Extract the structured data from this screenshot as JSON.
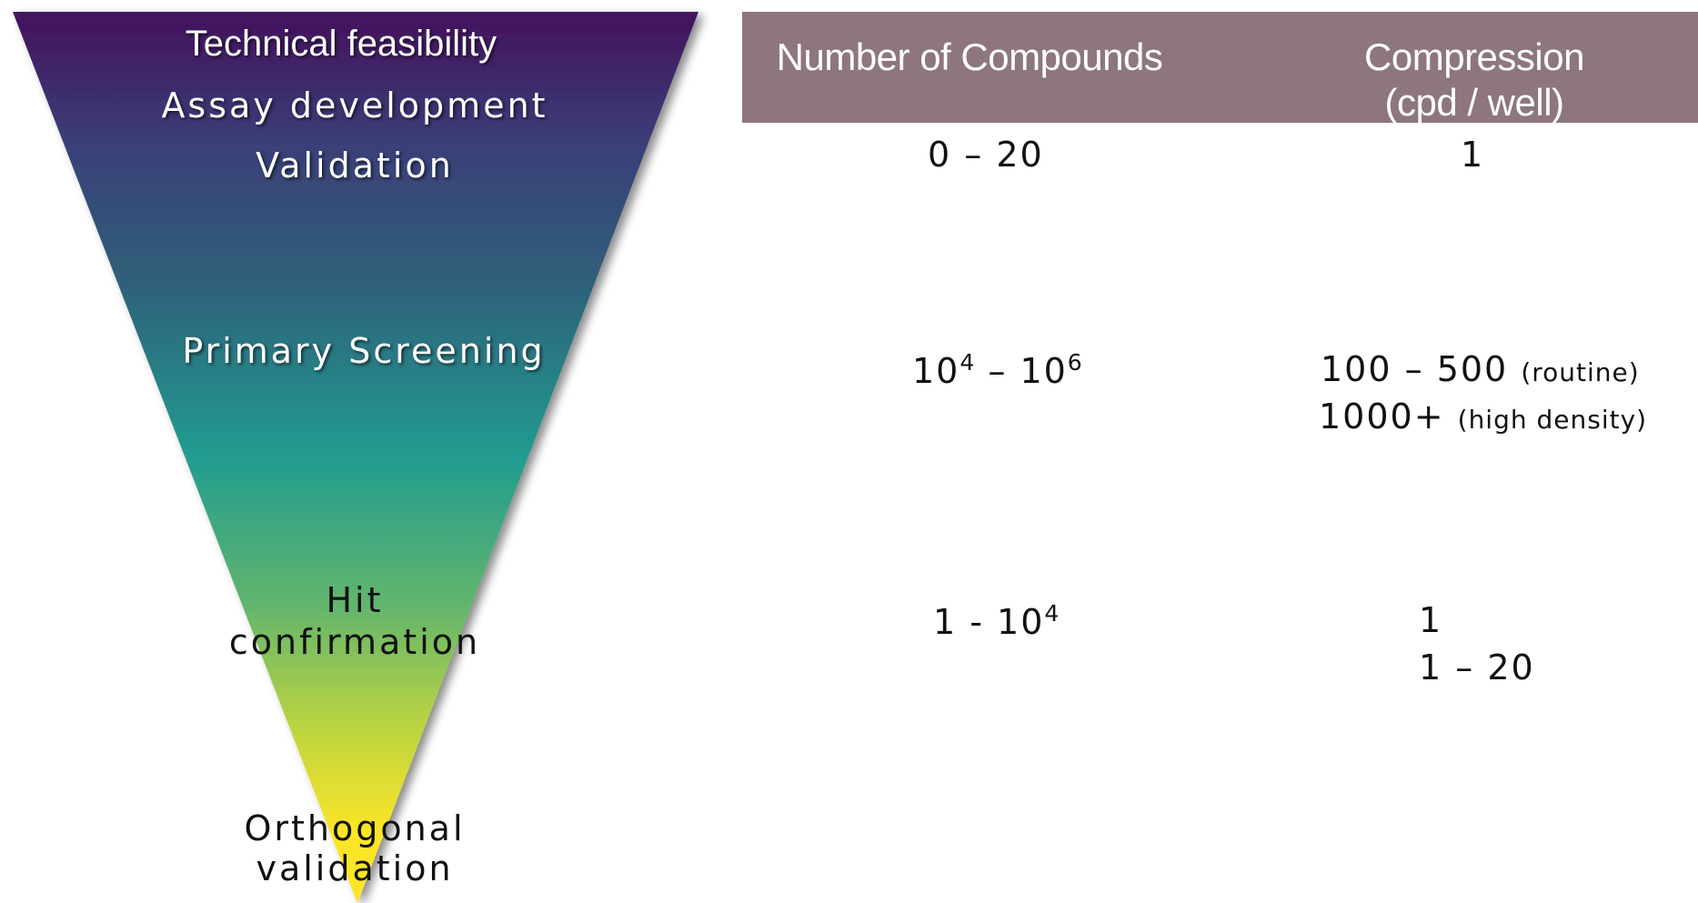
{
  "funnel": {
    "colors": {
      "top": "#44125c",
      "upper": "#3a3f78",
      "mid_upper": "#2f5f7a",
      "mid": "#229c90",
      "lower": "#64b66c",
      "lower2": "#bad441",
      "bottom": "#fbe527"
    },
    "stages": {
      "technical_feasibility": "Technical feasibility",
      "assay_development": "Assay development",
      "validation": "Validation",
      "primary_screening": "Primary Screening",
      "hit_confirmation_line1": "Hit",
      "hit_confirmation_line2": "confirmation",
      "orthogonal_line1": "Orthogonal",
      "orthogonal_line2": "validation"
    }
  },
  "table": {
    "header_color": "#8e767d",
    "headers": {
      "compounds": "Number of Compounds",
      "compression_line1": "Compression",
      "compression_line2": "(cpd / well)"
    },
    "rows": {
      "validation": {
        "compounds": "0 – 20",
        "compression": "1"
      },
      "primary": {
        "compounds_base1": "10",
        "compounds_exp1": "4",
        "compounds_sep": " – ",
        "compounds_base2": "10",
        "compounds_exp2": "6",
        "compression_routine_value": "100 – 500",
        "compression_routine_note": "(routine)",
        "compression_high_value": "1000+",
        "compression_high_note": "(high density)"
      },
      "hit": {
        "compounds_prefix": "1 - ",
        "compounds_base": "10",
        "compounds_exp": "4",
        "compression_1": "1",
        "compression_2": "1 – 20"
      }
    }
  }
}
